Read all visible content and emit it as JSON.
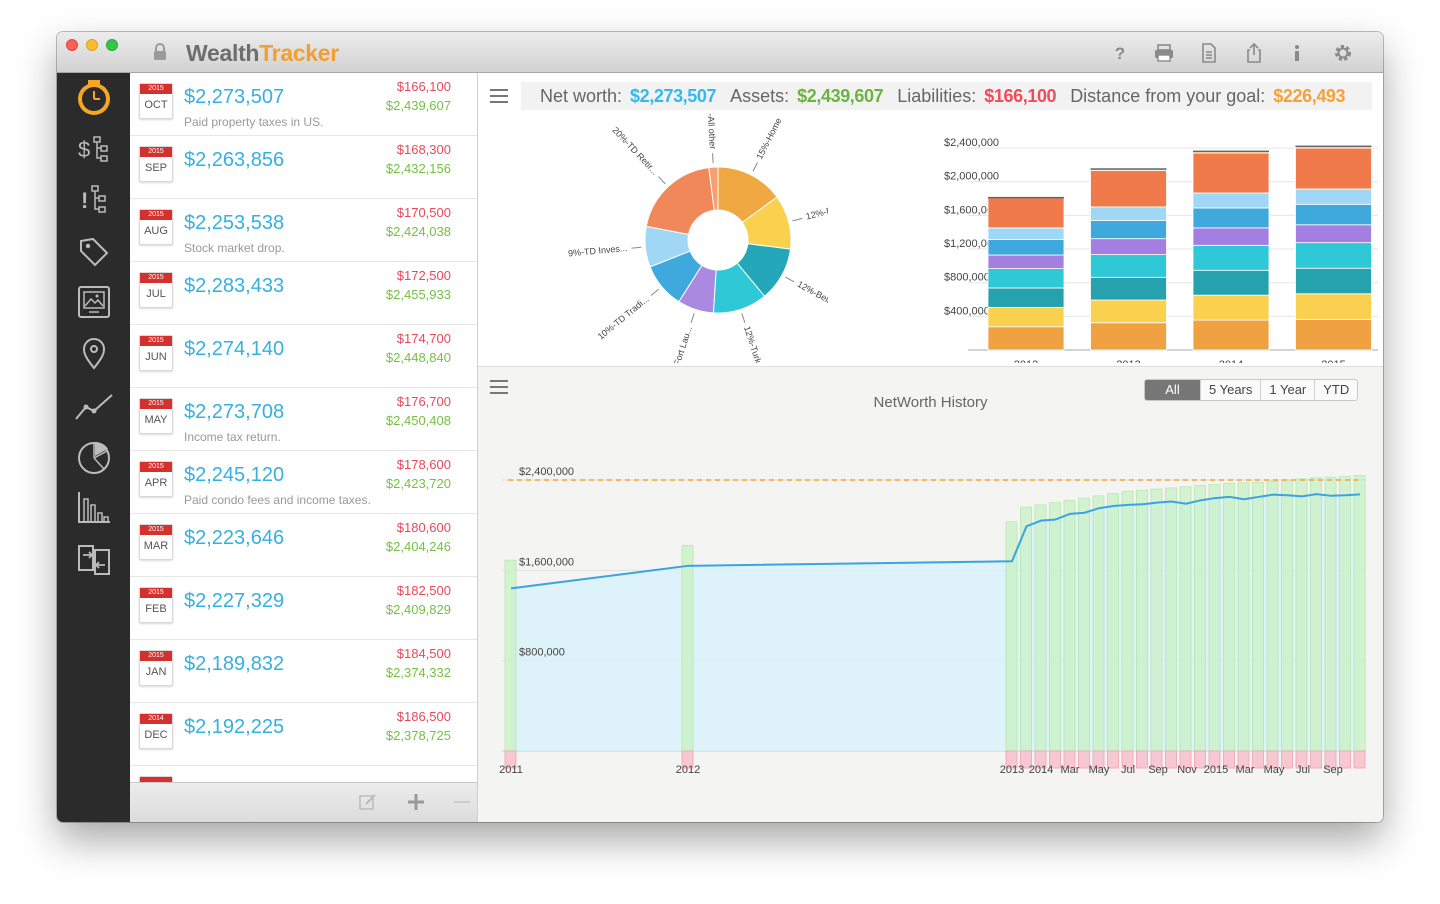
{
  "app": {
    "title_part1": "Wealth",
    "title_part2": "Tracker"
  },
  "toolbar_icons": [
    "help-icon",
    "print-icon",
    "document-icon",
    "share-icon",
    "info-icon",
    "gear-icon"
  ],
  "sidebar_icons": [
    "clock-icon",
    "dollar-tree-icon",
    "alert-tree-icon",
    "tag-icon",
    "photo-icon",
    "location-pin-icon",
    "line-chart-icon",
    "pie-chart-icon",
    "bar-chart-icon",
    "import-export-icon"
  ],
  "records": [
    {
      "year": "2015",
      "month": "OCT",
      "net_worth": "$2,273,507",
      "liabilities": "$166,100",
      "assets": "$2,439,607",
      "note": "Paid property taxes in US."
    },
    {
      "year": "2015",
      "month": "SEP",
      "net_worth": "$2,263,856",
      "liabilities": "$168,300",
      "assets": "$2,432,156",
      "note": ""
    },
    {
      "year": "2015",
      "month": "AUG",
      "net_worth": "$2,253,538",
      "liabilities": "$170,500",
      "assets": "$2,424,038",
      "note": "Stock market drop."
    },
    {
      "year": "2015",
      "month": "JUL",
      "net_worth": "$2,283,433",
      "liabilities": "$172,500",
      "assets": "$2,455,933",
      "note": ""
    },
    {
      "year": "2015",
      "month": "JUN",
      "net_worth": "$2,274,140",
      "liabilities": "$174,700",
      "assets": "$2,448,840",
      "note": ""
    },
    {
      "year": "2015",
      "month": "MAY",
      "net_worth": "$2,273,708",
      "liabilities": "$176,700",
      "assets": "$2,450,408",
      "note": "Income tax return."
    },
    {
      "year": "2015",
      "month": "APR",
      "net_worth": "$2,245,120",
      "liabilities": "$178,600",
      "assets": "$2,423,720",
      "note": "Paid condo fees and income taxes."
    },
    {
      "year": "2015",
      "month": "MAR",
      "net_worth": "$2,223,646",
      "liabilities": "$180,600",
      "assets": "$2,404,246",
      "note": ""
    },
    {
      "year": "2015",
      "month": "FEB",
      "net_worth": "$2,227,329",
      "liabilities": "$182,500",
      "assets": "$2,409,829",
      "note": ""
    },
    {
      "year": "2015",
      "month": "JAN",
      "net_worth": "$2,189,832",
      "liabilities": "$184,500",
      "assets": "$2,374,332",
      "note": ""
    },
    {
      "year": "2014",
      "month": "DEC",
      "net_worth": "$2,192,225",
      "liabilities": "$186,500",
      "assets": "$2,378,725",
      "note": ""
    }
  ],
  "list_footer": {
    "edit_icon": "edit-icon",
    "add_icon": "plus-icon",
    "remove_icon": "minus-icon"
  },
  "summary": {
    "net_worth_label": "Net worth:",
    "net_worth": "$2,273,507",
    "assets_label": "Assets:",
    "assets": "$2,439,607",
    "liabilities_label": "Liabilities:",
    "liabilities": "$166,100",
    "goal_label": "Distance from your goal:",
    "goal": "$226,493",
    "colors": {
      "net_worth": "#35b9ec",
      "assets": "#6db33f",
      "liabilities": "#ef4c5b",
      "goal": "#f2a33a"
    }
  },
  "history": {
    "title": "NetWorth History",
    "ranges": [
      "All",
      "5 Years",
      "1 Year",
      "YTD"
    ],
    "active_range": "All"
  },
  "chart_data": [
    {
      "type": "pie",
      "variant": "donut",
      "labels": [
        "15%-Home",
        "12%-Revera",
        "12%-Belize h...",
        "12%-Turks ar",
        "-Fort Lau...",
        "10%-TD Tradi...",
        "9%-TD Inves...",
        "20%-TD Retir...",
        "%-All other"
      ],
      "values": [
        15,
        12,
        12,
        12,
        8,
        10,
        9,
        20,
        2
      ],
      "colors": [
        "#f0a842",
        "#fad04f",
        "#24a7b8",
        "#2ec8d6",
        "#a98ae0",
        "#3fa9de",
        "#9fd7f4",
        "#f0885a",
        "#f4a070"
      ]
    },
    {
      "type": "bar",
      "stacked": true,
      "categories": [
        "2012",
        "2013",
        "2014",
        "2015"
      ],
      "yticks": [
        "$400,000",
        "$800,000",
        "$1,200,000",
        "$1,600,000",
        "$2,000,000",
        "$2,400,000"
      ],
      "ylim": [
        0,
        2400000
      ],
      "totals": [
        1820000,
        2160000,
        2370000,
        2430000
      ],
      "segment_colors": [
        "#f0a142",
        "#fad04f",
        "#26a2ae",
        "#2ec8d6",
        "#a27fe0",
        "#3fa9de",
        "#9fd7f4",
        "#f07a4a",
        "#f3d26b"
      ]
    },
    {
      "type": "area",
      "title": "NetWorth History",
      "x_tick_labels": [
        "2011",
        "2012",
        "2013",
        "2014",
        "Mar",
        "May",
        "Jul",
        "Sep",
        "Nov",
        "2015",
        "Mar",
        "May",
        "Jul",
        "Sep"
      ],
      "yticks": [
        "$800,000",
        "$1,600,000",
        "$2,400,000"
      ],
      "ylim": [
        0,
        2600000
      ],
      "goal_line": 2400000,
      "series": [
        {
          "values": [
            1440000,
            1640000,
            1680000,
            1990000,
            2040000,
            2050000,
            2100000,
            2110000,
            2150000,
            2170000,
            2180000,
            2185000,
            2200000,
            2210000,
            2190000,
            2220000,
            2240000,
            2250000,
            2230000,
            2250000,
            2270000,
            2265000,
            2255000,
            2275000,
            2260000,
            2265000,
            2273000
          ]
        }
      ],
      "bars": [
        1690000,
        1820000,
        2030000,
        2160000,
        2180000,
        2200000,
        2220000,
        2240000,
        2260000,
        2280000,
        2300000,
        2310000,
        2320000,
        2330000,
        2340000,
        2350000,
        2360000,
        2370000,
        2375000,
        2380000,
        2390000,
        2400000,
        2410000,
        2420000,
        2425000,
        2430000,
        2440000
      ]
    }
  ]
}
